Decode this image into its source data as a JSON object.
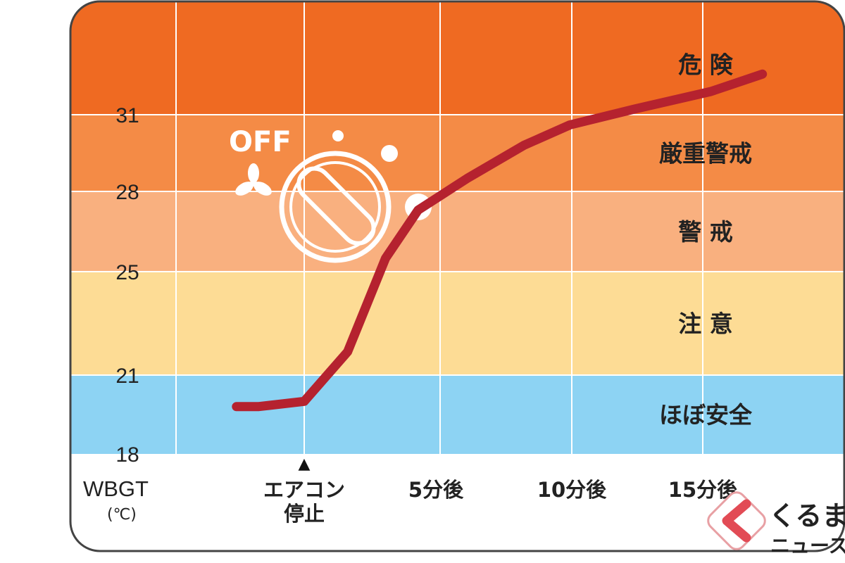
{
  "chart_data": {
    "type": "line",
    "ylabel": "WBGT",
    "yunit": "(℃)",
    "yticks": [
      18,
      21,
      25,
      28,
      31
    ],
    "xticks": [
      "エアコン\n停止",
      "5分後",
      "10分後",
      "15分後"
    ],
    "ylim": [
      18,
      33.5
    ],
    "grid": true,
    "zones": [
      {
        "label": "ほぼ安全",
        "from": 18,
        "to": 21,
        "color": "#8dd3f3"
      },
      {
        "label": "注 意",
        "from": 21,
        "to": 25,
        "color": "#fddc95"
      },
      {
        "label": "警 戒",
        "from": 25,
        "to": 28,
        "color": "#f9b07f"
      },
      {
        "label": "厳重警戒",
        "from": 28,
        "to": 31,
        "color": "#f48b46"
      },
      {
        "label": "危 険",
        "from": 31,
        "to": 33.5,
        "color": "#ef6a22"
      }
    ],
    "series": [
      {
        "color": "#b5222f",
        "x": [
          -2.5,
          -1.7,
          0,
          1.6,
          3.0,
          4.2,
          6.0,
          8.1,
          9.8,
          12.2,
          15.0,
          16.9
        ],
        "y": [
          19.8,
          19.8,
          20.0,
          21.9,
          25.5,
          27.3,
          28.5,
          29.8,
          30.6,
          31.2,
          31.8,
          32.4
        ]
      }
    ],
    "annotations": {
      "marker": "▲",
      "icon_text": "OFF"
    }
  },
  "logo": {
    "line1": "くるまの",
    "line2": "ニュース"
  }
}
